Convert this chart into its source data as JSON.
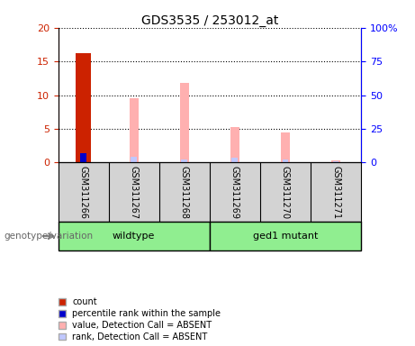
{
  "title": "GDS3535 / 253012_at",
  "samples": [
    "GSM311266",
    "GSM311267",
    "GSM311268",
    "GSM311269",
    "GSM311270",
    "GSM311271"
  ],
  "count_values": [
    16.2,
    0,
    0,
    0,
    0,
    0
  ],
  "percentile_values": [
    7.0,
    0,
    0,
    0,
    0,
    0
  ],
  "absent_value": [
    0,
    9.5,
    11.8,
    5.3,
    4.5,
    0.3
  ],
  "absent_rank": [
    0,
    4.1,
    2.2,
    3.8,
    2.1,
    1.3
  ],
  "ylim_left": [
    0,
    20
  ],
  "ylim_right": [
    0,
    100
  ],
  "yticks_left": [
    0,
    5,
    10,
    15,
    20
  ],
  "yticks_right": [
    0,
    25,
    50,
    75,
    100
  ],
  "ytick_labels_right": [
    "0",
    "25",
    "50",
    "75",
    "100%"
  ],
  "color_count": "#CC2200",
  "color_percentile": "#0000CC",
  "color_absent_value": "#FFB0B0",
  "color_absent_rank": "#C0C8FF",
  "group1_label": "wildtype",
  "group2_label": "ged1 mutant",
  "genotype_label": "genotype/variation",
  "legend_items": [
    {
      "label": "count",
      "color": "#CC2200"
    },
    {
      "label": "percentile rank within the sample",
      "color": "#0000CC"
    },
    {
      "label": "value, Detection Call = ABSENT",
      "color": "#FFB0B0"
    },
    {
      "label": "rank, Detection Call = ABSENT",
      "color": "#C0C8FF"
    }
  ],
  "bar_width": 0.35,
  "background_color": "#ffffff",
  "plot_bg": "#ffffff",
  "sample_area_color": "#d3d3d3",
  "group_color": "#90EE90"
}
